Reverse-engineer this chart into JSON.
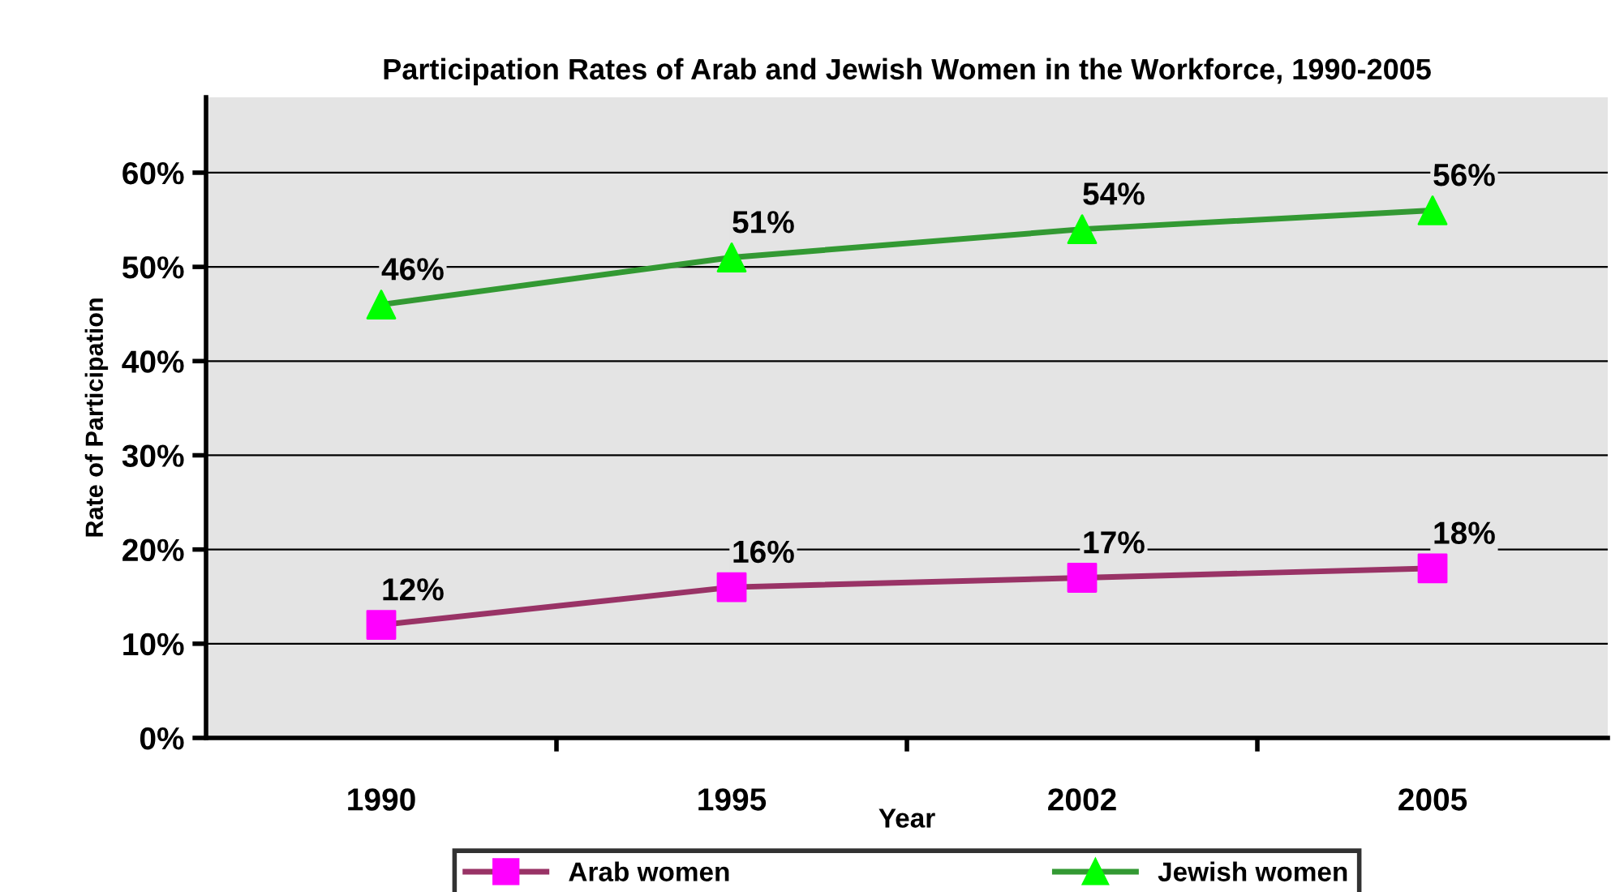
{
  "chart_data": {
    "type": "line",
    "title": "Participation Rates of Arab and Jewish Women in the Workforce, 1990-2005",
    "xlabel": "Year",
    "ylabel": "Rate of Participation",
    "categories": [
      "1990",
      "1995",
      "2002",
      "2005"
    ],
    "series": [
      {
        "name": "Arab women",
        "color": "#993366",
        "colors": [
          "#ff00ff",
          "#ff00ff",
          "#ff00ff",
          "#ff00ff"
        ],
        "marker": "square",
        "values": [
          12,
          16,
          17,
          18
        ],
        "value_labels": [
          "12%",
          "16%",
          "17%",
          "18%"
        ]
      },
      {
        "name": "Jewish women",
        "color": "#339933",
        "colors": [
          "#00ff00",
          "#00ff00",
          "#00ff00",
          "#00ff00"
        ],
        "marker": "triangle",
        "values": [
          46,
          51,
          54,
          56
        ],
        "value_labels": [
          "46%",
          "51%",
          "54%",
          "56%"
        ]
      }
    ],
    "ylim": [
      0,
      68
    ],
    "yticks": [
      {
        "value": 0,
        "label": "0%"
      },
      {
        "value": 10,
        "label": "10%"
      },
      {
        "value": 20,
        "label": "20%"
      },
      {
        "value": 30,
        "label": "30%"
      },
      {
        "value": 40,
        "label": "40%"
      },
      {
        "value": 50,
        "label": "50%"
      },
      {
        "value": 60,
        "label": "60%"
      }
    ],
    "grid": "y",
    "legend": "bottom",
    "line_style": "solid"
  }
}
